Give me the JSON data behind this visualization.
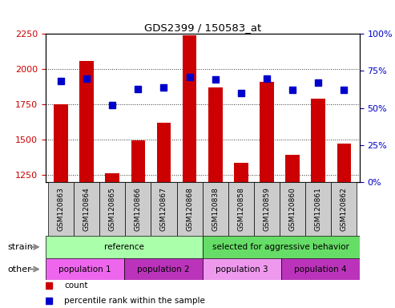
{
  "title": "GDS2399 / 150583_at",
  "samples": [
    "GSM120863",
    "GSM120864",
    "GSM120865",
    "GSM120866",
    "GSM120867",
    "GSM120868",
    "GSM120838",
    "GSM120858",
    "GSM120859",
    "GSM120860",
    "GSM120861",
    "GSM120862"
  ],
  "counts": [
    1750,
    2060,
    1260,
    1495,
    1620,
    2240,
    1870,
    1335,
    1910,
    1395,
    1790,
    1475
  ],
  "percentile_ranks": [
    68,
    70,
    52,
    63,
    64,
    71,
    69,
    60,
    70,
    62,
    67,
    62
  ],
  "ylim_left": [
    1200,
    2250
  ],
  "ylim_right": [
    0,
    100
  ],
  "yticks_left": [
    1250,
    1500,
    1750,
    2000,
    2250
  ],
  "yticks_right": [
    0,
    25,
    50,
    75,
    100
  ],
  "bar_color": "#cc0000",
  "dot_color": "#0000cc",
  "strain_groups": [
    {
      "text": "reference",
      "start": 0,
      "end": 6,
      "color": "#aaffaa"
    },
    {
      "text": "selected for aggressive behavior",
      "start": 6,
      "end": 12,
      "color": "#66dd66"
    }
  ],
  "other_groups": [
    {
      "text": "population 1",
      "start": 0,
      "end": 3,
      "color": "#ee66ee"
    },
    {
      "text": "population 2",
      "start": 3,
      "end": 6,
      "color": "#bb33bb"
    },
    {
      "text": "population 3",
      "start": 6,
      "end": 9,
      "color": "#ee99ee"
    },
    {
      "text": "population 4",
      "start": 9,
      "end": 12,
      "color": "#bb33bb"
    }
  ],
  "legend_items": [
    {
      "color": "#cc0000",
      "label": "count"
    },
    {
      "color": "#0000cc",
      "label": "percentile rank within the sample"
    }
  ],
  "bar_width": 0.55,
  "sample_box_color": "#cccccc",
  "tick_label_color_left": "#cc0000",
  "tick_label_color_right": "#0000cc"
}
